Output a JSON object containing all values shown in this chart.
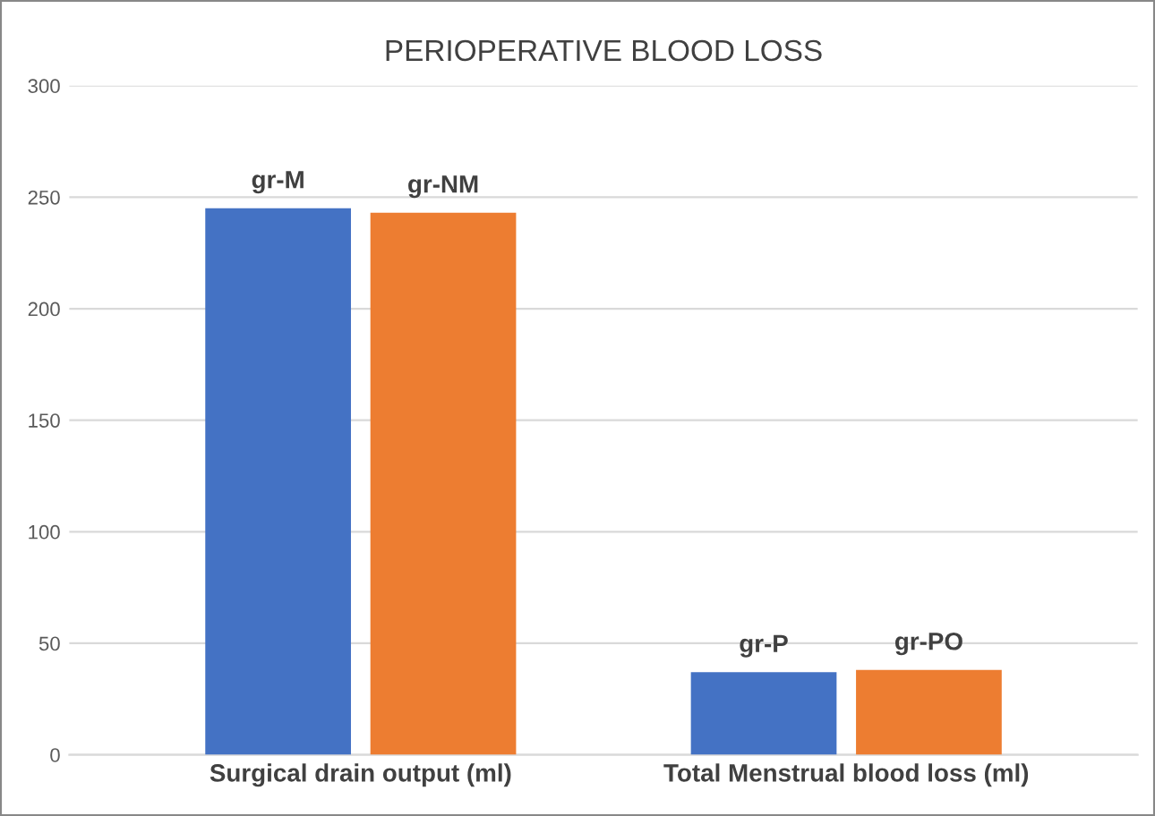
{
  "chart_data": {
    "type": "bar",
    "title": "PERIOPERATIVE BLOOD LOSS",
    "categories": [
      "Surgical drain output (ml)",
      "Total Menstrual blood loss (ml)"
    ],
    "series": [
      {
        "color": "#4472c4",
        "values": [
          245,
          37
        ],
        "value_labels": [
          "gr-M",
          "gr-P"
        ]
      },
      {
        "color": "#ed7d31",
        "values": [
          243,
          38
        ],
        "value_labels": [
          "gr-NM",
          "gr-PO"
        ]
      }
    ],
    "ylim": [
      0,
      300
    ],
    "yticks": [
      0,
      50,
      100,
      150,
      200,
      250,
      300
    ],
    "grid": "y",
    "legend": false
  }
}
